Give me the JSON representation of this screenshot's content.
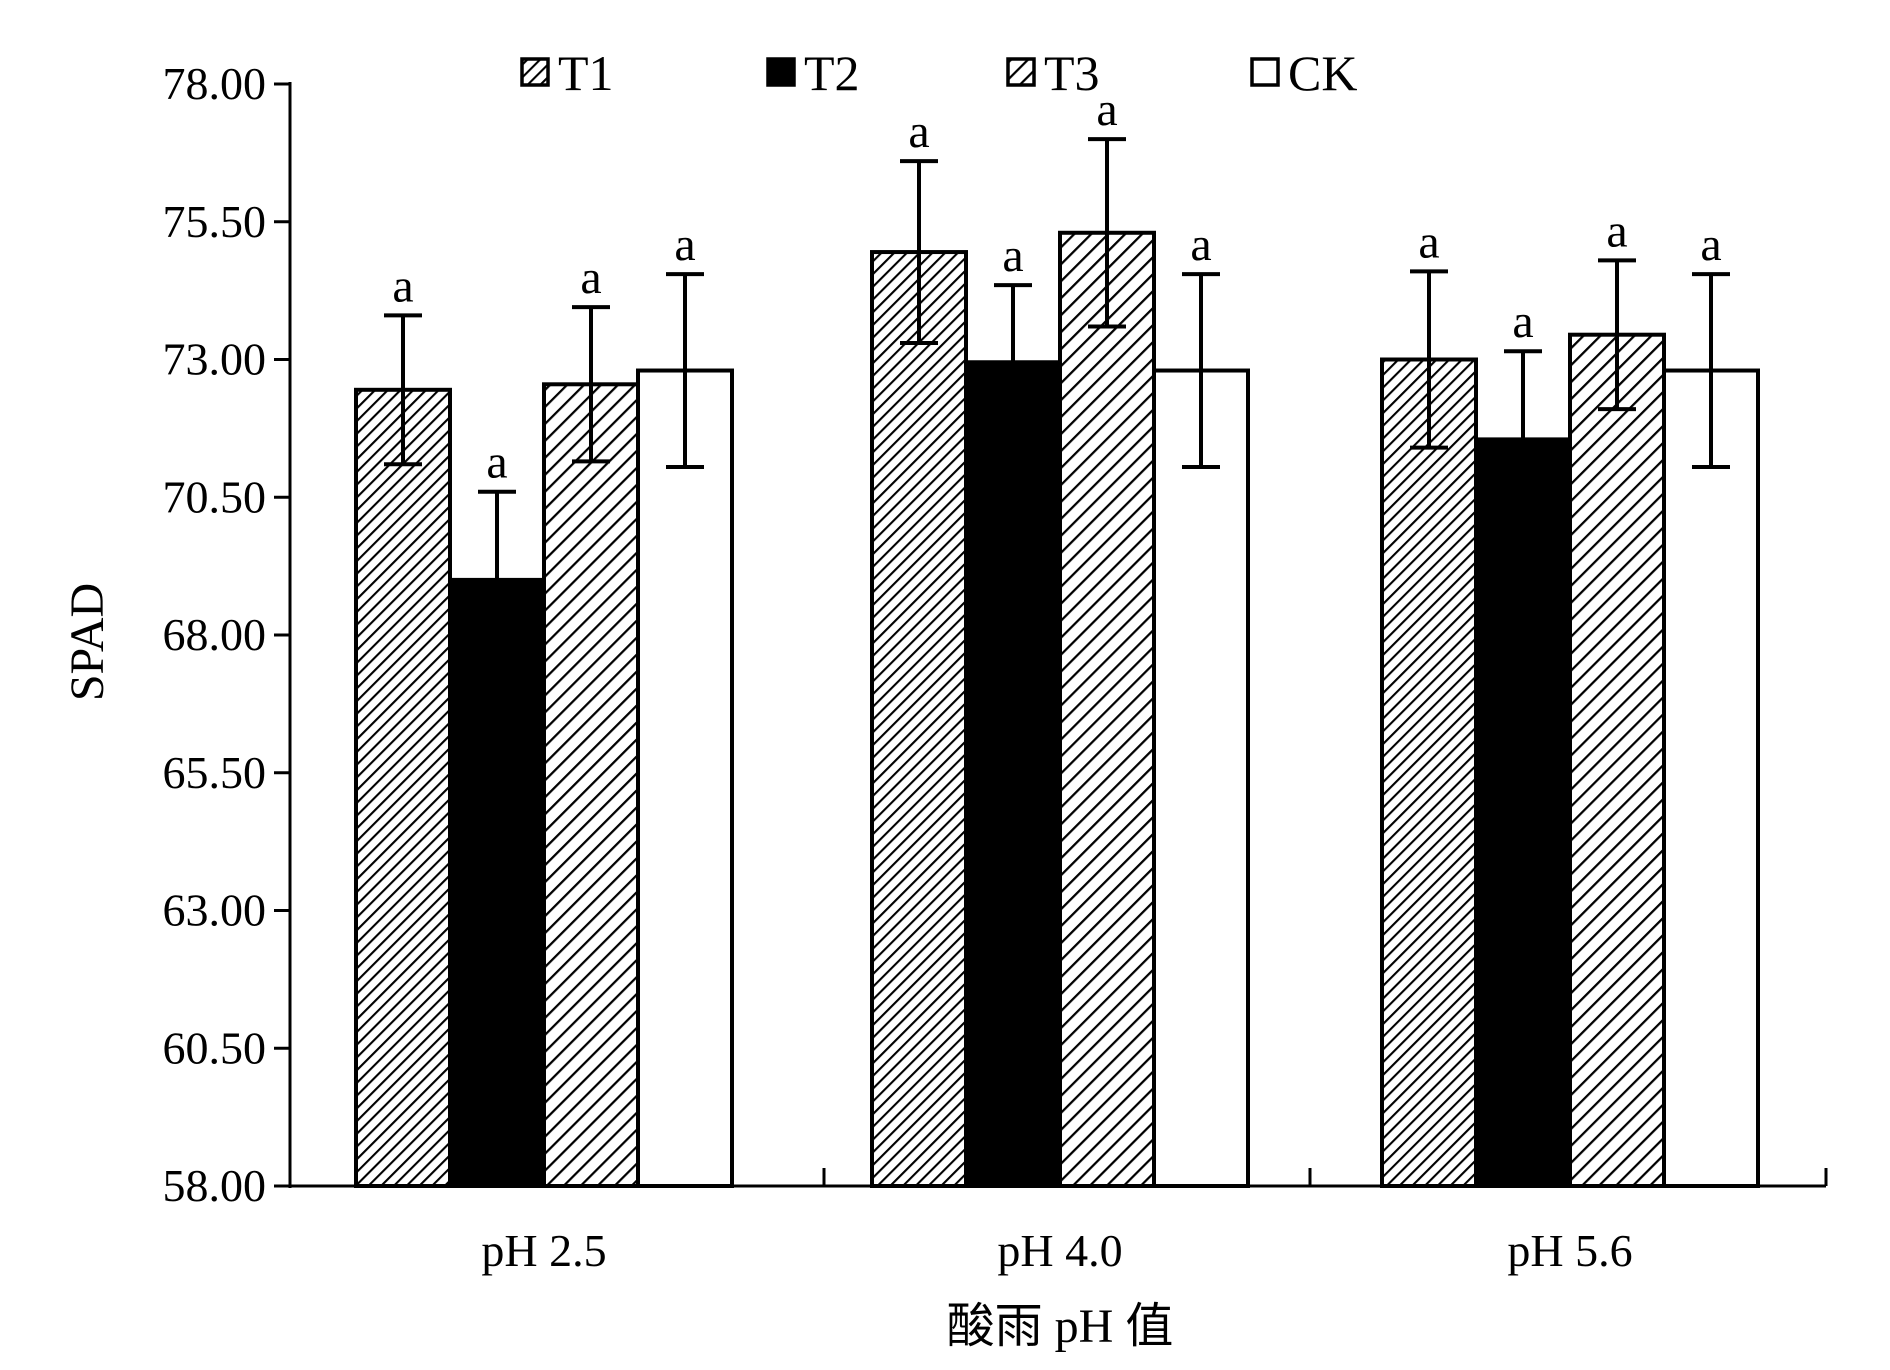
{
  "chart_data": {
    "type": "bar",
    "title": "",
    "xlabel": "酸雨 pH 值",
    "ylabel": "SPAD",
    "ylim": [
      58,
      78
    ],
    "yticks": [
      "58.00",
      "60.50",
      "63.00",
      "65.50",
      "68.00",
      "70.50",
      "73.00",
      "75.50",
      "78.00"
    ],
    "categories": [
      "pH 2.5",
      "pH 4.0",
      "pH 5.6"
    ],
    "legend_position": "top",
    "grid": false,
    "series": [
      {
        "name": "T1",
        "pattern": "dense-diagonal",
        "values": [
          72.45,
          74.95,
          73.0
        ],
        "errors": [
          1.35,
          1.65,
          1.6
        ],
        "significance": [
          "a",
          "a",
          "a"
        ]
      },
      {
        "name": "T2",
        "pattern": "solid-black",
        "values": [
          69.0,
          72.95,
          71.55
        ],
        "errors": [
          1.6,
          1.4,
          1.6
        ],
        "significance": [
          "a",
          "a",
          "a"
        ]
      },
      {
        "name": "T3",
        "pattern": "diagonal",
        "values": [
          72.55,
          75.3,
          73.45
        ],
        "errors": [
          1.4,
          1.7,
          1.35
        ],
        "significance": [
          "a",
          "a",
          "a"
        ]
      },
      {
        "name": "CK",
        "pattern": "white",
        "values": [
          72.8,
          72.8,
          72.8
        ],
        "errors": [
          1.75,
          1.75,
          1.75
        ],
        "significance": [
          "a",
          "a",
          "a"
        ]
      }
    ]
  }
}
